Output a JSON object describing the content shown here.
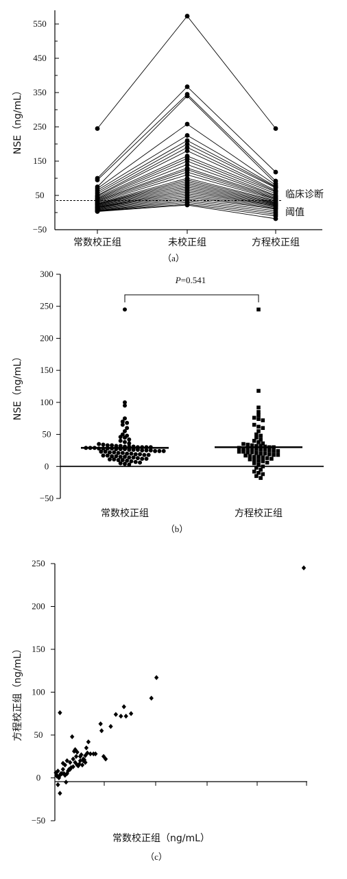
{
  "chart_data": [
    {
      "type": "line",
      "caption": "（a）",
      "ylabel": "NSE（ng/mL）",
      "ylim": [
        -50,
        590
      ],
      "yticks": [
        -50,
        50,
        150,
        250,
        350,
        450,
        550
      ],
      "categories": [
        "常数校正组",
        "未校正组",
        "方程校正组"
      ],
      "threshold": {
        "value": 35,
        "label_line1": "临床诊断",
        "label_line2": "阈值"
      },
      "series": [
        {
          "values": [
            245,
            573,
            245
          ]
        },
        {
          "values": [
            100,
            367,
            118
          ]
        },
        {
          "values": [
            95,
            345,
            92
          ]
        },
        {
          "values": [
            75,
            340,
            85
          ]
        },
        {
          "values": [
            70,
            258,
            80
          ]
        },
        {
          "values": [
            65,
            225,
            76
          ]
        },
        {
          "values": [
            60,
            210,
            74
          ]
        },
        {
          "values": [
            55,
            200,
            72
          ]
        },
        {
          "values": [
            50,
            190,
            65
          ]
        },
        {
          "values": [
            48,
            180,
            62
          ]
        },
        {
          "values": [
            45,
            165,
            60
          ]
        },
        {
          "values": [
            42,
            158,
            55
          ]
        },
        {
          "values": [
            40,
            150,
            50
          ]
        },
        {
          "values": [
            38,
            140,
            48
          ]
        },
        {
          "values": [
            36,
            130,
            45
          ]
        },
        {
          "values": [
            34,
            125,
            42
          ]
        },
        {
          "values": [
            32,
            118,
            40
          ]
        },
        {
          "values": [
            30,
            110,
            38
          ]
        },
        {
          "values": [
            28,
            100,
            35
          ]
        },
        {
          "values": [
            26,
            95,
            33
          ]
        },
        {
          "values": [
            25,
            90,
            30
          ]
        },
        {
          "values": [
            24,
            85,
            28
          ]
        },
        {
          "values": [
            22,
            80,
            26
          ]
        },
        {
          "values": [
            20,
            75,
            24
          ]
        },
        {
          "values": [
            18,
            70,
            22
          ]
        },
        {
          "values": [
            16,
            65,
            20
          ]
        },
        {
          "values": [
            15,
            60,
            18
          ]
        },
        {
          "values": [
            14,
            55,
            15
          ]
        },
        {
          "values": [
            12,
            50,
            12
          ]
        },
        {
          "values": [
            10,
            45,
            10
          ]
        },
        {
          "values": [
            8,
            40,
            5
          ]
        },
        {
          "values": [
            6,
            35,
            0
          ]
        },
        {
          "values": [
            5,
            30,
            -5
          ]
        },
        {
          "values": [
            4,
            25,
            -10
          ]
        },
        {
          "values": [
            3,
            22,
            -18
          ]
        }
      ]
    },
    {
      "type": "scatter",
      "caption": "（b）",
      "ylabel": "NSE（ng/mL）",
      "ylim": [
        -50,
        300
      ],
      "yticks": [
        -50,
        0,
        50,
        100,
        150,
        200,
        250,
        300
      ],
      "categories": [
        "常数校正组",
        "方程校正组"
      ],
      "annotation": {
        "prefix": "P",
        "text": "=0.541"
      },
      "groups": [
        {
          "name": "常数校正组",
          "marker": "circle",
          "median": 29,
          "values": [
            245,
            100,
            95,
            75,
            70,
            68,
            65,
            60,
            55,
            50,
            48,
            46,
            45,
            42,
            40,
            38,
            36,
            35,
            34,
            33,
            33,
            32,
            32,
            31,
            31,
            31,
            30,
            30,
            30,
            30,
            29,
            29,
            29,
            28,
            28,
            28,
            28,
            27,
            27,
            27,
            26,
            26,
            26,
            25,
            25,
            25,
            24,
            24,
            24,
            23,
            23,
            22,
            22,
            21,
            21,
            20,
            20,
            19,
            19,
            18,
            18,
            17,
            17,
            16,
            16,
            15,
            15,
            14,
            14,
            13,
            12,
            12,
            11,
            11,
            10,
            10,
            9,
            8,
            7,
            6,
            5,
            4,
            3
          ]
        },
        {
          "name": "方程校正组",
          "marker": "square",
          "median": 30,
          "values": [
            245,
            118,
            92,
            85,
            80,
            76,
            74,
            72,
            65,
            62,
            60,
            55,
            50,
            48,
            45,
            42,
            40,
            38,
            36,
            35,
            34,
            33,
            32,
            32,
            31,
            30,
            30,
            29,
            28,
            28,
            27,
            27,
            26,
            26,
            25,
            24,
            24,
            23,
            23,
            22,
            22,
            21,
            20,
            20,
            19,
            18,
            18,
            17,
            16,
            15,
            15,
            14,
            13,
            12,
            11,
            10,
            9,
            8,
            6,
            5,
            3,
            0,
            -2,
            -5,
            -8,
            -10,
            -12,
            -15,
            -18
          ]
        }
      ]
    },
    {
      "type": "scatter",
      "caption": "（c）",
      "xlabel": "常数校正组（ng/mL）",
      "ylabel": "方程校正组（ng/mL）",
      "ylim": [
        -50,
        250
      ],
      "yticks": [
        -50,
        0,
        50,
        100,
        150,
        200,
        250
      ],
      "xlim": [
        0,
        245
      ],
      "xticks": [
        0,
        245
      ],
      "x": [
        245,
        100,
        95,
        75,
        70,
        68,
        65,
        60,
        55,
        50,
        48,
        46,
        45,
        40,
        38,
        35,
        33,
        32,
        31,
        30,
        30,
        29,
        28,
        28,
        27,
        26,
        25,
        25,
        24,
        23,
        22,
        22,
        21,
        20,
        20,
        19,
        18,
        18,
        17,
        16,
        15,
        15,
        14,
        13,
        12,
        12,
        11,
        10,
        10,
        9,
        8,
        8,
        7,
        6,
        5,
        5,
        4,
        3,
        3,
        2,
        2,
        1,
        5
      ],
      "y": [
        245,
        117,
        93,
        75,
        72,
        83,
        72,
        74,
        60,
        22,
        25,
        55,
        63,
        28,
        28,
        28,
        42,
        29,
        35,
        26,
        18,
        21,
        20,
        22,
        15,
        27,
        25,
        20,
        16,
        14,
        30,
        15,
        25,
        18,
        33,
        31,
        22,
        13,
        48,
        12,
        18,
        10,
        10,
        8,
        5,
        20,
        -5,
        15,
        3,
        5,
        17,
        10,
        5,
        5,
        3,
        -18,
        0,
        -8,
        8,
        2,
        3,
        6,
        76
      ]
    }
  ]
}
